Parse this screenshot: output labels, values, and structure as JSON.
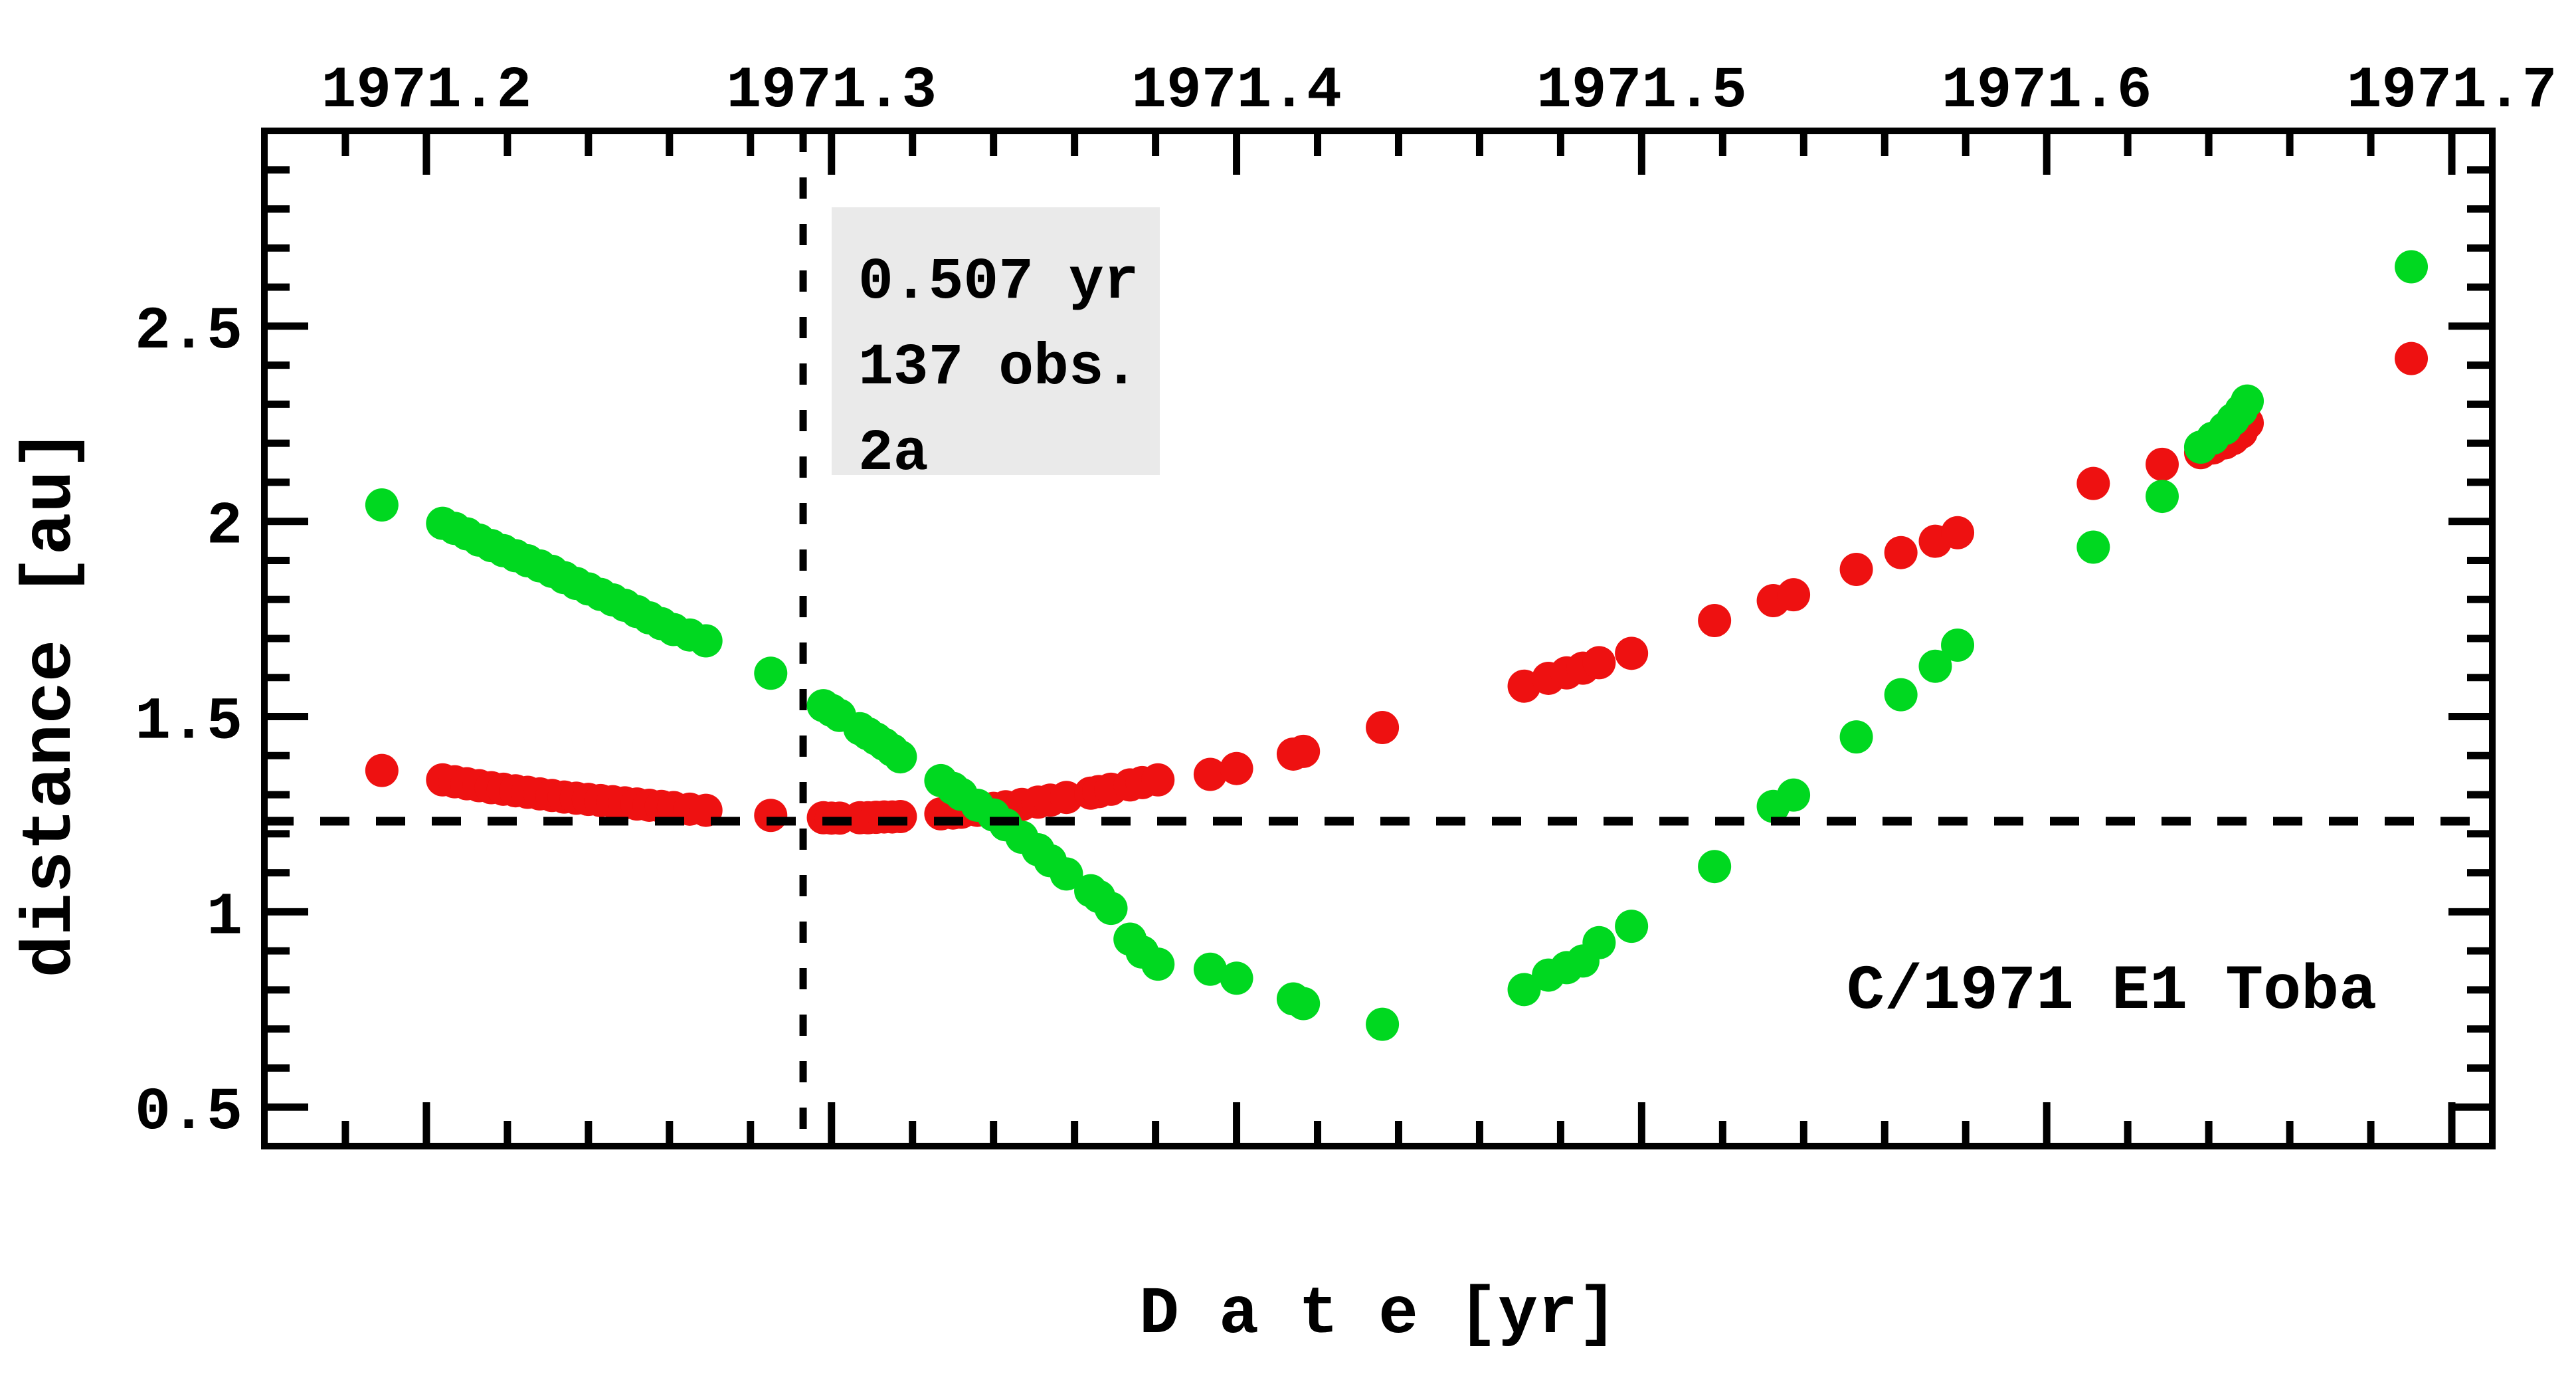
{
  "chart_data": {
    "type": "scatter",
    "title": "",
    "xlabel": "D a t e [yr]",
    "ylabel": "distance [au]",
    "xlim": [
      1971.16,
      1971.71
    ],
    "ylim": [
      0.4,
      3.0
    ],
    "grid": false,
    "legend_position": "none",
    "x_axis": {
      "major_tick_values": [
        1971.2,
        1971.3,
        1971.4,
        1971.5,
        1971.6,
        1971.7
      ],
      "major_tick_labels": [
        "1971.2",
        "1971.3",
        "1971.4",
        "1971.5",
        "1971.6",
        "1971.7"
      ],
      "minor_tick_step": 0.02,
      "labels_position": "top"
    },
    "y_axis": {
      "major_tick_values": [
        0.5,
        1.0,
        1.5,
        2.0,
        2.5
      ],
      "major_tick_labels": [
        "0.5",
        "1",
        "1.5",
        "2",
        "2.5"
      ],
      "minor_tick_step": 0.1,
      "labels_position": "left"
    },
    "crosshair": {
      "vertical_dotted_line_x": 1971.293,
      "horizontal_dashed_line_y": 1.232
    },
    "info_box": {
      "lines": [
        "0.507 yr",
        "137 obs.",
        "2a"
      ],
      "background": "#eaeaea"
    },
    "object_label": "C/1971 E1 Toba",
    "series_colors": {
      "green": "#00d820",
      "red": "#ee1111"
    },
    "observations_format": [
      "date_yr",
      "red_value_au",
      "green_value_au"
    ],
    "observations": [
      [
        1971.189,
        1.362,
        2.042
      ],
      [
        1971.204,
        1.338,
        1.995
      ],
      [
        1971.207,
        1.333,
        1.982
      ],
      [
        1971.21,
        1.328,
        1.968
      ],
      [
        1971.213,
        1.323,
        1.952
      ],
      [
        1971.216,
        1.318,
        1.938
      ],
      [
        1971.219,
        1.314,
        1.925
      ],
      [
        1971.222,
        1.31,
        1.912
      ],
      [
        1971.225,
        1.306,
        1.899
      ],
      [
        1971.228,
        1.302,
        1.886
      ],
      [
        1971.231,
        1.298,
        1.872
      ],
      [
        1971.234,
        1.294,
        1.856
      ],
      [
        1971.237,
        1.291,
        1.841
      ],
      [
        1971.24,
        1.288,
        1.827
      ],
      [
        1971.243,
        1.285,
        1.813
      ],
      [
        1971.246,
        1.282,
        1.799
      ],
      [
        1971.249,
        1.279,
        1.785
      ],
      [
        1971.252,
        1.276,
        1.769
      ],
      [
        1971.255,
        1.273,
        1.753
      ],
      [
        1971.258,
        1.27,
        1.738
      ],
      [
        1971.261,
        1.267,
        1.723
      ],
      [
        1971.265,
        1.263,
        1.709
      ],
      [
        1971.269,
        1.26,
        1.694
      ],
      [
        1971.285,
        1.247,
        1.611
      ],
      [
        1971.298,
        1.241,
        1.528
      ],
      [
        1971.3,
        1.24,
        1.516
      ],
      [
        1971.302,
        1.24,
        1.503
      ],
      [
        1971.307,
        1.241,
        1.469
      ],
      [
        1971.309,
        1.241,
        1.456
      ],
      [
        1971.311,
        1.242,
        1.443
      ],
      [
        1971.313,
        1.243,
        1.429
      ],
      [
        1971.315,
        1.243,
        1.414
      ],
      [
        1971.317,
        1.244,
        1.397
      ],
      [
        1971.327,
        1.251,
        1.336
      ],
      [
        1971.33,
        1.253,
        1.316
      ],
      [
        1971.332,
        1.255,
        1.301
      ],
      [
        1971.336,
        1.26,
        1.273
      ],
      [
        1971.34,
        1.265,
        1.248
      ],
      [
        1971.343,
        1.269,
        1.223
      ],
      [
        1971.347,
        1.275,
        1.191
      ],
      [
        1971.351,
        1.281,
        1.159
      ],
      [
        1971.354,
        1.286,
        1.131
      ],
      [
        1971.358,
        1.293,
        1.097
      ],
      [
        1971.364,
        1.304,
        1.054
      ],
      [
        1971.366,
        1.308,
        1.039
      ],
      [
        1971.369,
        1.314,
        1.009
      ],
      [
        1971.3737,
        1.325,
        0.93
      ],
      [
        1971.3767,
        1.331,
        0.897
      ],
      [
        1971.3806,
        1.338,
        0.866
      ],
      [
        1971.3935,
        1.352,
        0.853
      ],
      [
        1971.4,
        1.367,
        0.83
      ],
      [
        1971.414,
        1.404,
        0.777
      ],
      [
        1971.4165,
        1.411,
        0.765
      ],
      [
        1971.436,
        1.472,
        0.712
      ],
      [
        1971.471,
        1.578,
        0.801
      ],
      [
        1971.477,
        1.598,
        0.838
      ],
      [
        1971.4815,
        1.612,
        0.857
      ],
      [
        1971.4855,
        1.624,
        0.874
      ],
      [
        1971.4895,
        1.638,
        0.921
      ],
      [
        1971.4975,
        1.662,
        0.963
      ],
      [
        1971.518,
        1.746,
        1.116
      ],
      [
        1971.5325,
        1.797,
        1.27
      ],
      [
        1971.5375,
        1.812,
        1.299
      ],
      [
        1971.553,
        1.877,
        1.448
      ],
      [
        1971.564,
        1.92,
        1.556
      ],
      [
        1971.5725,
        1.949,
        1.629
      ],
      [
        1971.578,
        1.971,
        1.683
      ],
      [
        1971.6115,
        2.097,
        1.934
      ],
      [
        1971.6285,
        2.146,
        2.064
      ],
      [
        1971.638,
        2.176,
        2.19
      ],
      [
        1971.641,
        2.188,
        2.213
      ],
      [
        1971.644,
        2.201,
        2.238
      ],
      [
        1971.646,
        2.212,
        2.261
      ],
      [
        1971.648,
        2.228,
        2.284
      ],
      [
        1971.6495,
        2.252,
        2.308
      ],
      [
        1971.69,
        2.417,
        2.652
      ]
    ]
  }
}
